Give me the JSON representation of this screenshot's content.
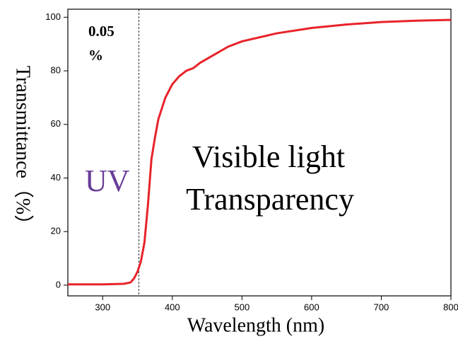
{
  "chart_data": {
    "type": "line",
    "x": [
      250,
      300,
      330,
      340,
      345,
      350,
      355,
      360,
      365,
      370,
      375,
      380,
      390,
      400,
      410,
      420,
      430,
      440,
      460,
      480,
      500,
      550,
      600,
      650,
      700,
      750,
      800
    ],
    "values": [
      0.3,
      0.3,
      0.5,
      1,
      2.5,
      5,
      9,
      16,
      30,
      47,
      55,
      62,
      70,
      75,
      78,
      80,
      81,
      83,
      86,
      89,
      91,
      94,
      96,
      97.3,
      98.2,
      98.7,
      99
    ],
    "color": "#e8232a",
    "xlim": [
      250,
      800
    ],
    "ylim": [
      -4,
      103
    ],
    "xticks": [
      300,
      400,
      500,
      600,
      700,
      800
    ],
    "yticks": [
      0,
      20,
      40,
      60,
      80,
      100
    ],
    "x_label": "Wavelength  (nm)",
    "y_label": "Transmittance（%）",
    "marker_x": 352,
    "annotations": [
      "0.05",
      "%",
      "UV",
      "Visible light",
      "Transparency"
    ]
  }
}
